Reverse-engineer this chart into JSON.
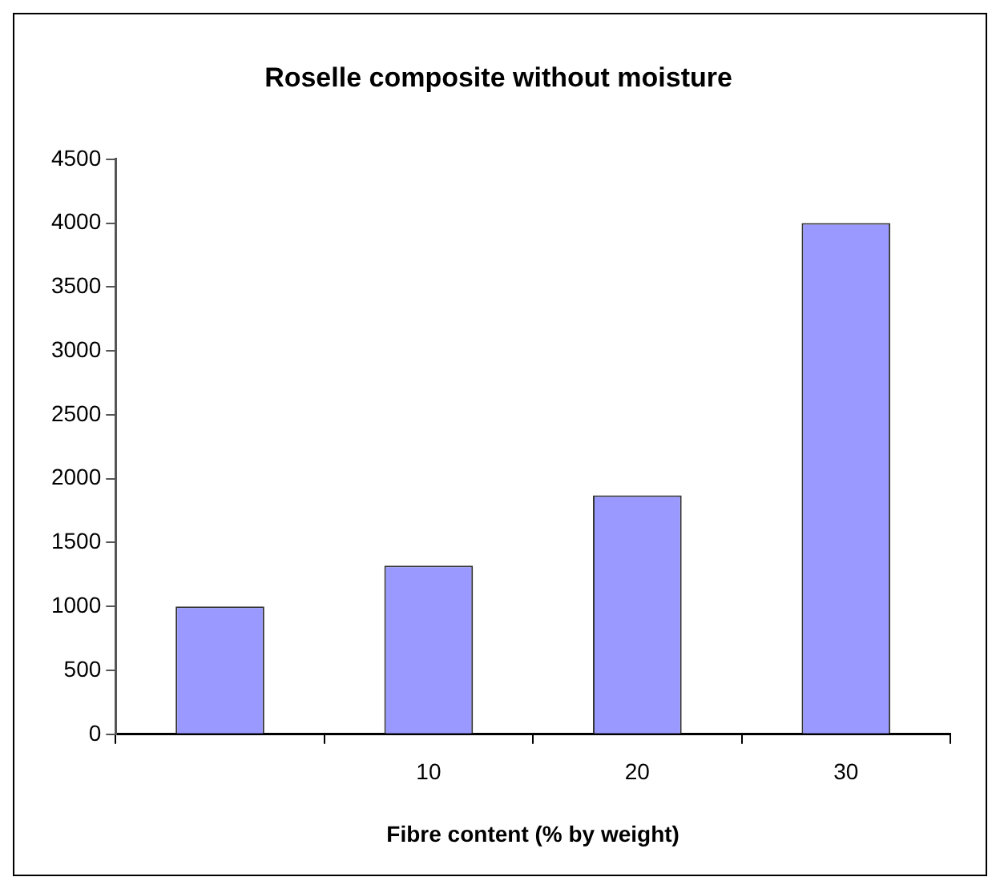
{
  "chart_data": {
    "type": "bar",
    "title": "Roselle composite without moisture",
    "xlabel": "Fibre content (% by weight)",
    "categories": [
      null,
      "10",
      "20",
      "30"
    ],
    "values": [
      1000,
      1320,
      1870,
      4000
    ],
    "color": "#9999ff",
    "ylim": [
      0,
      4500
    ],
    "yticks": [
      0,
      500,
      1000,
      1500,
      2000,
      2500,
      3000,
      3500,
      4000,
      4500
    ],
    "grid": false,
    "legend": false
  }
}
